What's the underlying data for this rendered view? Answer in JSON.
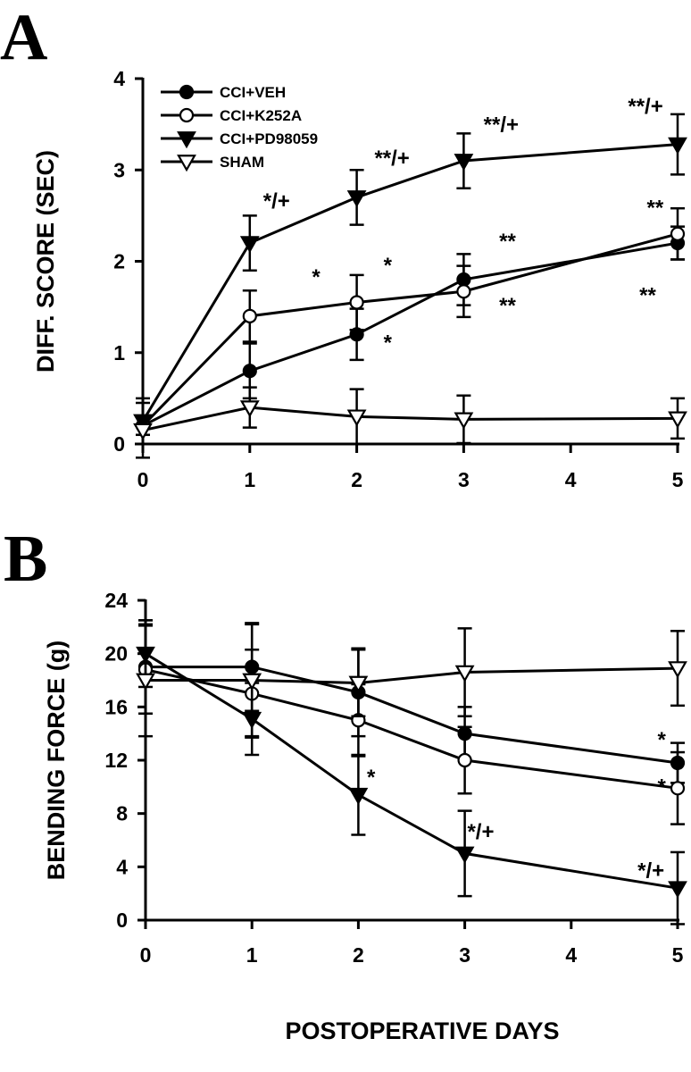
{
  "panels": [
    {
      "letter": "A"
    },
    {
      "letter": "B"
    }
  ],
  "colors": {
    "ink": "#000000",
    "paper": "#ffffff"
  },
  "chart_data": [
    {
      "type": "line",
      "panel": "A",
      "xlabel": "",
      "ylabel": "DIFF. SCORE (SEC)",
      "xlim": [
        0,
        5
      ],
      "ylim": [
        0,
        4
      ],
      "xticks": [
        0,
        1,
        2,
        3,
        4,
        5
      ],
      "yticks": [
        0,
        1,
        2,
        3,
        4
      ],
      "grid": false,
      "legend": "top-left",
      "series": [
        {
          "name": "CCI+VEH",
          "marker": "filled-circle",
          "x": [
            0,
            1,
            2,
            3,
            5
          ],
          "y": [
            0.2,
            0.8,
            1.2,
            1.8,
            2.2
          ],
          "err": [
            0.1,
            0.3,
            0.28,
            0.28,
            0.18
          ]
        },
        {
          "name": "CCI+K252A",
          "marker": "open-circle",
          "x": [
            0,
            1,
            2,
            3,
            5
          ],
          "y": [
            0.2,
            1.4,
            1.55,
            1.67,
            2.3
          ],
          "err": [
            0.1,
            0.28,
            0.3,
            0.28,
            0.28
          ]
        },
        {
          "name": "CCI+PD98059",
          "marker": "filled-triangle",
          "x": [
            0,
            1,
            2,
            3,
            5
          ],
          "y": [
            0.25,
            2.2,
            2.7,
            3.1,
            3.28
          ],
          "err": [
            0.25,
            0.3,
            0.3,
            0.3,
            0.33
          ]
        },
        {
          "name": "SHAM",
          "marker": "open-triangle",
          "x": [
            0,
            1,
            2,
            3,
            5
          ],
          "y": [
            0.15,
            0.4,
            0.3,
            0.27,
            0.28
          ],
          "err": [
            0.3,
            0.22,
            0.3,
            0.26,
            0.22
          ]
        }
      ],
      "annotations": [
        {
          "text": "*/+",
          "x": 1.25,
          "y": 2.58
        },
        {
          "text": "*",
          "x": 1.62,
          "y": 1.75
        },
        {
          "text": "**/+",
          "x": 2.33,
          "y": 3.05
        },
        {
          "text": "*",
          "x": 2.29,
          "y": 1.88
        },
        {
          "text": "*",
          "x": 2.29,
          "y": 1.03
        },
        {
          "text": "**/+",
          "x": 3.35,
          "y": 3.42
        },
        {
          "text": "**",
          "x": 3.41,
          "y": 2.14
        },
        {
          "text": "**",
          "x": 3.41,
          "y": 1.44
        },
        {
          "text": "**/+",
          "x": 4.7,
          "y": 3.62
        },
        {
          "text": "**",
          "x": 4.79,
          "y": 2.51
        },
        {
          "text": "**",
          "x": 4.72,
          "y": 1.55
        }
      ]
    },
    {
      "type": "line",
      "panel": "B",
      "xlabel": "POSTOPERATIVE DAYS",
      "ylabel": "BENDING FORCE (g)",
      "xlim": [
        0,
        5
      ],
      "ylim": [
        0,
        24
      ],
      "xticks": [
        0,
        1,
        2,
        3,
        4,
        5
      ],
      "yticks": [
        0,
        4,
        8,
        12,
        16,
        20,
        24
      ],
      "grid": false,
      "series": [
        {
          "name": "CCI+VEH",
          "marker": "filled-circle",
          "x": [
            0,
            1,
            2,
            3,
            5
          ],
          "y": [
            19.0,
            19.0,
            17.1,
            14.0,
            11.8
          ],
          "err": [
            3.5,
            3.3,
            3.3,
            2.0,
            1.5
          ]
        },
        {
          "name": "CCI+K252A",
          "marker": "open-circle",
          "x": [
            0,
            1,
            2,
            3,
            5
          ],
          "y": [
            18.8,
            17.0,
            15.0,
            12.0,
            9.9
          ],
          "err": [
            3.3,
            3.3,
            2.7,
            2.5,
            2.7
          ]
        },
        {
          "name": "CCI+PD98059",
          "marker": "filled-triangle",
          "x": [
            0,
            1,
            2,
            3,
            5
          ],
          "y": [
            20.0,
            15.1,
            9.4,
            5.0,
            2.4
          ],
          "err": [
            2.5,
            2.7,
            3.0,
            3.2,
            2.7
          ]
        },
        {
          "name": "SHAM",
          "marker": "open-triangle",
          "x": [
            0,
            1,
            2,
            3,
            5
          ],
          "y": [
            18.0,
            18.0,
            17.8,
            18.6,
            18.9
          ],
          "err": [
            4.2,
            4.2,
            2.5,
            3.3,
            2.8
          ]
        }
      ],
      "annotations": [
        {
          "text": "*",
          "x": 2.12,
          "y": 10.2
        },
        {
          "text": "*/+",
          "x": 3.15,
          "y": 6.1
        },
        {
          "text": "*/+",
          "x": 4.75,
          "y": 3.2
        },
        {
          "text": "*",
          "x": 4.85,
          "y": 13.0
        },
        {
          "text": "*",
          "x": 4.85,
          "y": 9.5
        }
      ]
    }
  ]
}
